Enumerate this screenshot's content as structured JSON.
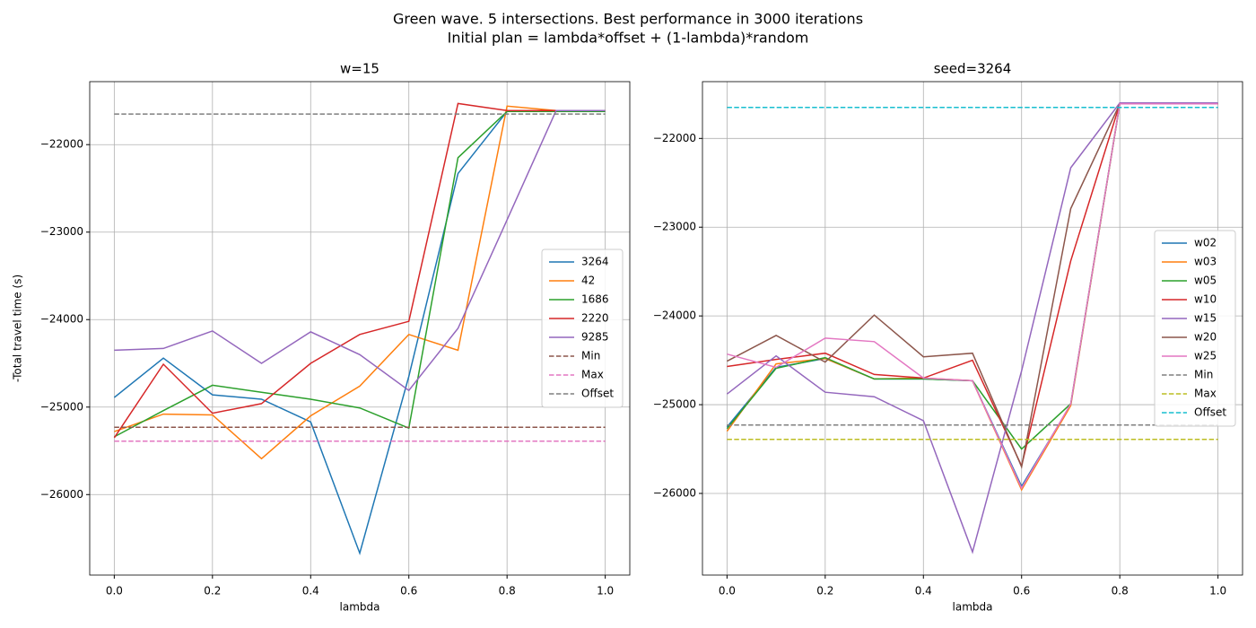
{
  "title": "Green wave. 5 intersections. Best performance in 3000 iterations",
  "subtitle": "Initial plan = lambda*offset + (1-lambda)*random",
  "chart_data": [
    {
      "type": "line",
      "title": "w=15",
      "xlabel": "lambda",
      "ylabel": "-Total travel time (s)",
      "x": [
        0,
        0.1,
        0.2,
        0.3,
        0.4,
        0.5,
        0.6,
        0.7,
        0.8,
        0.9,
        1
      ],
      "xlim": [
        -0.05,
        1.05
      ],
      "ylim": [
        -26920,
        -21280
      ],
      "xticks": [
        {
          "value": 0,
          "label": "0.0"
        },
        0.2,
        0.4,
        0.6,
        0.8,
        {
          "value": 1,
          "label": "1.0"
        }
      ],
      "yticks": [
        {
          "value": -26000,
          "label": "−26000"
        },
        {
          "value": -25000,
          "label": "−25000"
        },
        {
          "value": -24000,
          "label": "−24000"
        },
        {
          "value": -23000,
          "label": "−23000"
        },
        {
          "value": -22000,
          "label": "−22000"
        }
      ],
      "grid": true,
      "legend": "center right",
      "series": [
        {
          "name": "3264",
          "color": "#1f77b4",
          "values": [
            -24890,
            -24440,
            -24860,
            -24910,
            -25170,
            -26670,
            -24650,
            -22330,
            -21620,
            -21620,
            -21620
          ]
        },
        {
          "name": "42",
          "color": "#ff7f0e",
          "values": [
            -25280,
            -25080,
            -25090,
            -25590,
            -25100,
            -24760,
            -24170,
            -24350,
            -21560,
            -21610,
            -21610
          ]
        },
        {
          "name": "1686",
          "color": "#2ca02c",
          "values": [
            -25340,
            -25040,
            -24750,
            -24830,
            -24910,
            -25010,
            -25240,
            -22150,
            -21620,
            -21620,
            -21620
          ]
        },
        {
          "name": "2220",
          "color": "#d62728",
          "values": [
            -25350,
            -24510,
            -25070,
            -24960,
            -24500,
            -24170,
            -24020,
            -21530,
            -21610,
            -21610,
            -21610
          ]
        },
        {
          "name": "9285",
          "color": "#9467bd",
          "values": [
            -24350,
            -24330,
            -24130,
            -24500,
            -24140,
            -24400,
            -24810,
            -24100,
            -22860,
            -21610,
            -21610
          ]
        },
        {
          "name": "Min",
          "color": "#8c564b",
          "dashed": true,
          "values": [
            -25230,
            -25230,
            -25230,
            -25230,
            -25230,
            -25230,
            -25230,
            -25230,
            -25230,
            -25230,
            -25230
          ]
        },
        {
          "name": "Max",
          "color": "#e377c2",
          "dashed": true,
          "values": [
            -25390,
            -25390,
            -25390,
            -25390,
            -25390,
            -25390,
            -25390,
            -25390,
            -25390,
            -25390,
            -25390
          ]
        },
        {
          "name": "Offset",
          "color": "#7f7f7f",
          "dashed": true,
          "values": [
            -21650,
            -21650,
            -21650,
            -21650,
            -21650,
            -21650,
            -21650,
            -21650,
            -21650,
            -21650,
            -21650
          ]
        }
      ]
    },
    {
      "type": "line",
      "title": "seed=3264",
      "xlabel": "lambda",
      "x": [
        0,
        0.1,
        0.2,
        0.3,
        0.4,
        0.5,
        0.6,
        0.7,
        0.8,
        0.9,
        1
      ],
      "xlim": [
        -0.05,
        1.05
      ],
      "ylim": [
        -26920,
        -21360
      ],
      "xticks": [
        {
          "value": 0,
          "label": "0.0"
        },
        0.2,
        0.4,
        0.6,
        0.8,
        {
          "value": 1,
          "label": "1.0"
        }
      ],
      "yticks": [
        {
          "value": -26000,
          "label": "−26000"
        },
        {
          "value": -25000,
          "label": "−25000"
        },
        {
          "value": -24000,
          "label": "−24000"
        },
        {
          "value": -23000,
          "label": "−23000"
        },
        {
          "value": -22000,
          "label": "−22000"
        }
      ],
      "grid": true,
      "legend": "center right",
      "series": [
        {
          "name": "w02",
          "color": "#1f77b4",
          "values": [
            -25250,
            -24580,
            -24480,
            -24710,
            -24710,
            -24730,
            -25920,
            -25000,
            -21610,
            -21610,
            -21610
          ]
        },
        {
          "name": "w03",
          "color": "#ff7f0e",
          "values": [
            -25300,
            -24540,
            -24480,
            -24710,
            -24700,
            -24730,
            -25960,
            -25010,
            -21610,
            -21610,
            -21610
          ]
        },
        {
          "name": "w05",
          "color": "#2ca02c",
          "values": [
            -25270,
            -24590,
            -24470,
            -24710,
            -24710,
            -24730,
            -25500,
            -24990,
            -21610,
            -21610,
            -21610
          ]
        },
        {
          "name": "w10",
          "color": "#d62728",
          "values": [
            -24570,
            -24490,
            -24420,
            -24660,
            -24700,
            -24500,
            -25690,
            -23380,
            -21610,
            -21610,
            -21610
          ]
        },
        {
          "name": "w15",
          "color": "#9467bd",
          "values": [
            -24880,
            -24450,
            -24860,
            -24910,
            -25180,
            -26660,
            -24620,
            -22330,
            -21600,
            -21600,
            -21600
          ]
        },
        {
          "name": "w20",
          "color": "#8c564b",
          "values": [
            -24510,
            -24220,
            -24520,
            -23990,
            -24460,
            -24420,
            -25700,
            -22790,
            -21610,
            -21610,
            -21610
          ]
        },
        {
          "name": "w25",
          "color": "#e377c2",
          "values": [
            -24430,
            -24580,
            -24250,
            -24290,
            -24700,
            -24730,
            -25940,
            -24990,
            -21610,
            -21610,
            -21610
          ]
        },
        {
          "name": "Min",
          "color": "#7f7f7f",
          "dashed": true,
          "values": [
            -25230,
            -25230,
            -25230,
            -25230,
            -25230,
            -25230,
            -25230,
            -25230,
            -25230,
            -25230,
            -25230
          ]
        },
        {
          "name": "Max",
          "color": "#bcbd22",
          "dashed": true,
          "values": [
            -25390,
            -25390,
            -25390,
            -25390,
            -25390,
            -25390,
            -25390,
            -25390,
            -25390,
            -25390,
            -25390
          ]
        },
        {
          "name": "Offset",
          "color": "#17becf",
          "dashed": true,
          "values": [
            -21650,
            -21650,
            -21650,
            -21650,
            -21650,
            -21650,
            -21650,
            -21650,
            -21650,
            -21650,
            -21650
          ]
        }
      ]
    }
  ]
}
